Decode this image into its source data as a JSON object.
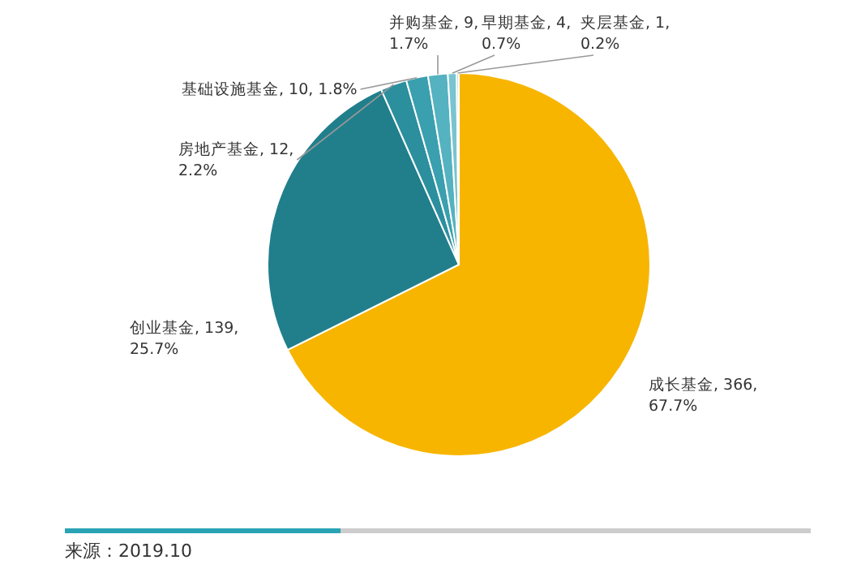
{
  "chart_data": {
    "type": "pie",
    "categories": [
      "成长基金",
      "创业基金",
      "房地产基金",
      "基础设施基金",
      "并购基金",
      "早期基金",
      "夹层基金"
    ],
    "values": [
      366,
      139,
      12,
      10,
      9,
      4,
      1
    ],
    "value_labels": [
      "366, 67.7%",
      "139, 25.7%",
      "12, 2.2%",
      "10, 1.8%",
      "9, 1.7%",
      "4, 0.7%",
      "1, 0.2%"
    ],
    "colors": [
      "#f7b500",
      "#217f8c",
      "#2b8f9e",
      "#3a9fae",
      "#55b2c0",
      "#79c4d0",
      "#a3d7df"
    ],
    "annotations": [
      "来源：2019.10"
    ]
  }
}
